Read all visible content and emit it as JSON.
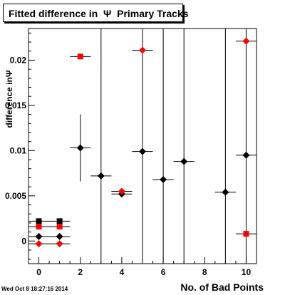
{
  "chart_data": {
    "type": "scatter",
    "title": "Fitted difference in  Ψ  Primary Tracks",
    "xlabel": "No. of Bad Points",
    "ylabel": "difference inΨ",
    "xlim": [
      -0.5,
      10.5
    ],
    "ylim": [
      -0.0025,
      0.0235
    ],
    "x_ticks": [
      0,
      2,
      4,
      6,
      8,
      10
    ],
    "x_tick_labels": [
      "0",
      "2",
      "4",
      "6",
      "8",
      "10"
    ],
    "y_ticks": [
      0,
      0.005,
      0.01,
      0.015,
      0.02
    ],
    "y_tick_labels": [
      "0",
      "0.005",
      "0.01",
      "0.015",
      "0.02"
    ],
    "grid": false,
    "timestamp": "Wed Oct  8 18:27:16 2014",
    "series": [
      {
        "marker": "square",
        "color": "#000000",
        "points": [
          {
            "x": 0,
            "y": 0.0022,
            "xerr": 0.5,
            "yerr": 0.0
          },
          {
            "x": 1,
            "y": 0.0022,
            "xerr": 0.5,
            "yerr": 0.0
          }
        ]
      },
      {
        "marker": "square",
        "color": "#ff0000",
        "points": [
          {
            "x": 0,
            "y": 0.0016,
            "xerr": 0.5,
            "yerr": 0.0
          },
          {
            "x": 1,
            "y": 0.0016,
            "xerr": 0.5,
            "yerr": 0.0
          },
          {
            "x": 2,
            "y": 0.0204,
            "xerr": 0.5,
            "yerr": 0.0
          },
          {
            "x": 10,
            "y": 0.0008,
            "xerr": 0.5,
            "yerr": 0.0
          }
        ]
      },
      {
        "marker": "diamond",
        "color": "#000000",
        "points": [
          {
            "x": 0,
            "y": 0.0005,
            "xerr": 0.5,
            "yerr": 0.0
          },
          {
            "x": 1,
            "y": 0.0005,
            "xerr": 0.5,
            "yerr": 0.0
          },
          {
            "x": 2,
            "y": 0.0103,
            "xerr": 0.5,
            "yerr": 0.0037
          },
          {
            "x": 3,
            "y": 0.0072,
            "xerr": 0.5,
            "yerr": 0.0235
          },
          {
            "x": 4,
            "y": 0.0052,
            "xerr": 0.5,
            "yerr": 0.0003
          },
          {
            "x": 5,
            "y": 0.0099,
            "xerr": 0.5,
            "yerr": 0.014
          },
          {
            "x": 6,
            "y": 0.0068,
            "xerr": 0.5,
            "yerr": 0.025
          },
          {
            "x": 7,
            "y": 0.0088,
            "xerr": 0.5,
            "yerr": 0.025
          },
          {
            "x": 9,
            "y": 0.0054,
            "xerr": 0.5,
            "yerr": 0.025
          },
          {
            "x": 10,
            "y": 0.0095,
            "xerr": 0.5,
            "yerr": 0.025
          }
        ]
      },
      {
        "marker": "diamond",
        "color": "#ff0000",
        "points": [
          {
            "x": 0,
            "y": -0.0003,
            "xerr": 0.5,
            "yerr": 0.0
          },
          {
            "x": 1,
            "y": -0.0003,
            "xerr": 0.5,
            "yerr": 0.0
          },
          {
            "x": 4,
            "y": 0.0055,
            "xerr": 0.5,
            "yerr": 0.0
          },
          {
            "x": 5,
            "y": 0.0211,
            "xerr": 0.5,
            "yerr": 0.0
          },
          {
            "x": 10,
            "y": 0.0221,
            "xerr": 0.5,
            "yerr": 0.0
          }
        ]
      }
    ]
  }
}
